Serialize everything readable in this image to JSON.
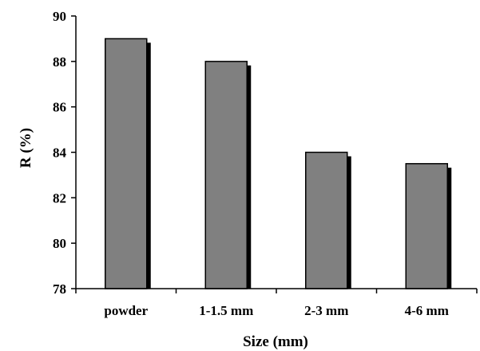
{
  "chart_data": {
    "type": "bar",
    "title": "",
    "xlabel": "Size (mm)",
    "ylabel": "R (%)",
    "categories": [
      "powder",
      "1-1.5 mm",
      "2-3 mm",
      "4-6 mm"
    ],
    "values": [
      89,
      88,
      84,
      83.5
    ],
    "ylim": [
      78,
      90
    ],
    "yticks": [
      78,
      80,
      82,
      84,
      86,
      88,
      90
    ],
    "grid": false,
    "legend": "none",
    "colors": {
      "bar": "#808080",
      "bar_edge": "#000000",
      "shadow": "#000000"
    }
  }
}
